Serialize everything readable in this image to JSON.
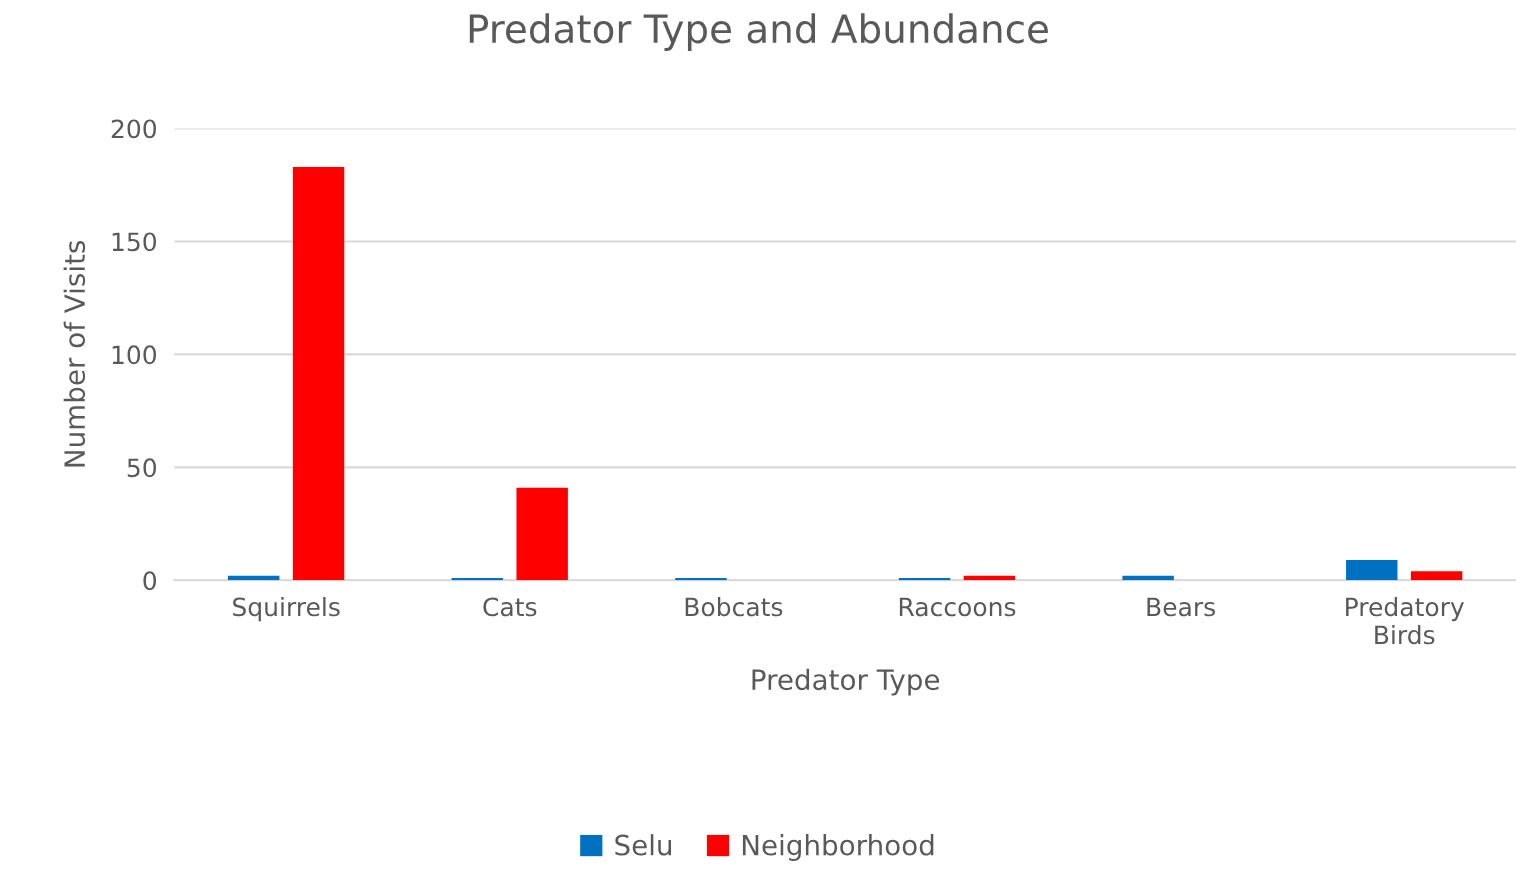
{
  "chart_data": {
    "type": "bar",
    "title": "Predator Type and Abundance",
    "xlabel": "Predator Type",
    "ylabel": "Number of Visits",
    "categories": [
      "Squirrels",
      "Cats",
      "Bobcats",
      "Raccoons",
      "Bears",
      "Predatory\nBirds"
    ],
    "series": [
      {
        "name": "Selu",
        "color": "#0070c0",
        "values": [
          2,
          1,
          1,
          1,
          2,
          9
        ]
      },
      {
        "name": "Neighborhood",
        "color": "#ff0000",
        "values": [
          183,
          41,
          0,
          2,
          0,
          4
        ]
      }
    ],
    "ylim": [
      0,
      200
    ],
    "yticks": [
      0,
      50,
      100,
      150,
      200
    ],
    "grid": "y",
    "legend": "bottom"
  }
}
